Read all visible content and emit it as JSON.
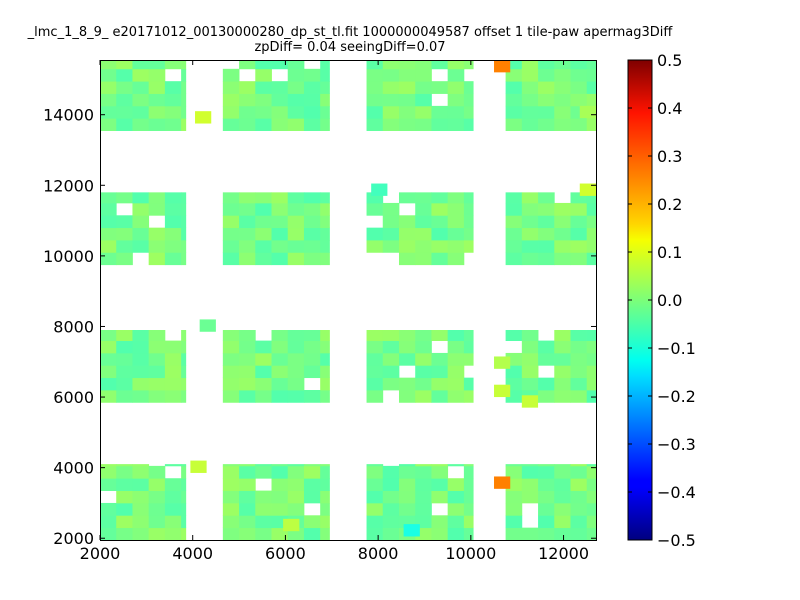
{
  "chart_data": {
    "type": "heatmap",
    "title_line1": "_lmc_1_8_9_ e20171012_00130000280_dp_st_tl.fit 1000000049587 offset 1 tile-paw apermag3Diff",
    "title_line2": "zpDiff= 0.04 seeingDiff=0.07",
    "xlim": [
      2000,
      12700
    ],
    "ylim": [
      1950,
      15550
    ],
    "xticks": [
      "2000",
      "4000",
      "6000",
      "8000",
      "10000",
      "12000"
    ],
    "xtick_values": [
      2000,
      4000,
      6000,
      8000,
      10000,
      12000
    ],
    "yticks": [
      "2000",
      "4000",
      "6000",
      "8000",
      "10000",
      "12000",
      "14000"
    ],
    "ytick_values": [
      2000,
      4000,
      6000,
      8000,
      10000,
      12000,
      14000
    ],
    "colorbar": {
      "range": [
        -0.5,
        0.5
      ],
      "ticks": [
        "0.5",
        "0.4",
        "0.3",
        "0.2",
        "0.1",
        "0.0",
        "−0.1",
        "−0.2",
        "−0.3",
        "−0.4",
        "−0.5"
      ],
      "tick_values": [
        0.5,
        0.4,
        0.3,
        0.2,
        0.1,
        0.0,
        -0.1,
        -0.2,
        -0.3,
        -0.4,
        -0.5
      ],
      "colormap": "jet"
    },
    "cell_size": 350,
    "blocks": [
      {
        "x0": 2000,
        "x1": 3850,
        "y0": 13550,
        "y1": 15550
      },
      {
        "x0": 4650,
        "x1": 6950,
        "y0": 13550,
        "y1": 15550
      },
      {
        "x0": 7750,
        "x1": 10050,
        "y0": 13550,
        "y1": 15550
      },
      {
        "x0": 10750,
        "x1": 12700,
        "y0": 13550,
        "y1": 15550
      },
      {
        "x0": 2000,
        "x1": 3850,
        "y0": 9750,
        "y1": 11800
      },
      {
        "x0": 4650,
        "x1": 6950,
        "y0": 9750,
        "y1": 11800
      },
      {
        "x0": 7750,
        "x1": 10050,
        "y0": 9750,
        "y1": 11800
      },
      {
        "x0": 10750,
        "x1": 12700,
        "y0": 9750,
        "y1": 11800
      },
      {
        "x0": 2000,
        "x1": 3850,
        "y0": 5850,
        "y1": 7900
      },
      {
        "x0": 4650,
        "x1": 6950,
        "y0": 5850,
        "y1": 7900
      },
      {
        "x0": 7750,
        "x1": 10050,
        "y0": 5850,
        "y1": 7900
      },
      {
        "x0": 10750,
        "x1": 12700,
        "y0": 5850,
        "y1": 7900
      },
      {
        "x0": 2000,
        "x1": 3850,
        "y0": 1950,
        "y1": 4100
      },
      {
        "x0": 4650,
        "x1": 6950,
        "y0": 1950,
        "y1": 4100
      },
      {
        "x0": 7750,
        "x1": 10050,
        "y0": 1950,
        "y1": 4100
      },
      {
        "x0": 10750,
        "x1": 12700,
        "y0": 1950,
        "y1": 4100
      }
    ],
    "highlights": [
      {
        "x": 10500,
        "y": 15200,
        "value": 0.25
      },
      {
        "x": 4050,
        "y": 13750,
        "value": 0.08
      },
      {
        "x": 12350,
        "y": 11700,
        "value": 0.08
      },
      {
        "x": 7850,
        "y": 11700,
        "value": -0.06
      },
      {
        "x": 12350,
        "y": 13900,
        "value": 0.04
      },
      {
        "x": 10500,
        "y": 6000,
        "value": 0.07
      },
      {
        "x": 11100,
        "y": 5700,
        "value": 0.07
      },
      {
        "x": 10500,
        "y": 3400,
        "value": 0.25
      },
      {
        "x": 3950,
        "y": 3850,
        "value": 0.07
      },
      {
        "x": 8550,
        "y": 2050,
        "value": -0.1
      },
      {
        "x": 4150,
        "y": 7850,
        "value": -0.02
      },
      {
        "x": 10500,
        "y": 6800,
        "value": 0.05
      },
      {
        "x": 5950,
        "y": 2200,
        "value": 0.06
      }
    ]
  }
}
